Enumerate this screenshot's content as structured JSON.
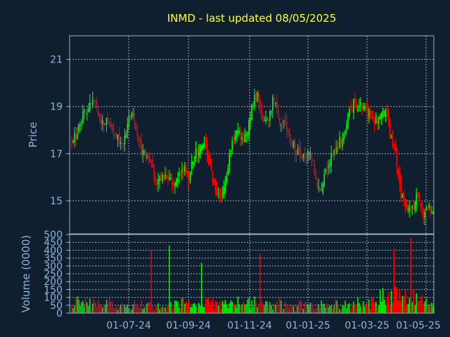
{
  "chart_data": {
    "type": "candlestick",
    "title": "INMD - last updated 08/05/2025",
    "price_panel": {
      "ylabel": "Price",
      "ylim": [
        13.6,
        22.0
      ],
      "yticks": [
        15,
        17,
        19,
        21
      ],
      "ytick_labels": [
        "15",
        "17",
        "19",
        "21"
      ]
    },
    "volume_panel": {
      "ylabel": "Volume (0000)",
      "ylim": [
        0,
        500
      ],
      "yticks": [
        0,
        50,
        100,
        150,
        200,
        250,
        300,
        350,
        400,
        450,
        500
      ],
      "ytick_labels": [
        "0",
        "50",
        "100",
        "150",
        "200",
        "250",
        "300",
        "350",
        "400",
        "450",
        "500"
      ]
    },
    "x_labels": [
      "01-07-24",
      "01-09-24",
      "01-11-24",
      "01-01-25",
      "01-03-25",
      "01-05-25"
    ],
    "grid": true,
    "up_color": "#00ff00",
    "down_color": "#ff0000",
    "background": "#0f1f30",
    "title_color": "#ffff33",
    "text_color": "#8fb5d8",
    "price_path": [
      17.4,
      17.9,
      18.6,
      18.8,
      19.3,
      18.7,
      18.2,
      18.4,
      18.0,
      17.5,
      17.6,
      18.8,
      18.3,
      17.2,
      17.0,
      16.4,
      15.8,
      15.9,
      16.1,
      15.7,
      15.9,
      16.5,
      15.8,
      16.9,
      17.2,
      17.6,
      16.4,
      15.4,
      15.0,
      16.0,
      17.4,
      18.0,
      17.6,
      17.8,
      19.2,
      19.4,
      18.2,
      18.4,
      19.5,
      18.6,
      18.2,
      17.8,
      17.2,
      16.9,
      16.7,
      17.1,
      15.8,
      15.6,
      16.5,
      17.0,
      17.4,
      17.6,
      18.6,
      19.1,
      19.0,
      18.9,
      18.7,
      18.4,
      18.5,
      18.8,
      17.8,
      16.8,
      15.2,
      14.8,
      14.6,
      15.4,
      14.3,
      14.7,
      14.4
    ],
    "volume_path": [
      40,
      90,
      60,
      70,
      80,
      60,
      50,
      70,
      60,
      50,
      40,
      60,
      80,
      70,
      60,
      50,
      40,
      60,
      50,
      60,
      70,
      80,
      60,
      50,
      60,
      70,
      90,
      60,
      50,
      60,
      70,
      80,
      60,
      70,
      80,
      90,
      60,
      50,
      60,
      70,
      60,
      50,
      40,
      60,
      50,
      60,
      70,
      80,
      90,
      70,
      60,
      50,
      60,
      70,
      80,
      60,
      70,
      90,
      110,
      120,
      130,
      150,
      140,
      120,
      110,
      100,
      90,
      80,
      60
    ],
    "volume_spikes": [
      [
        0.22,
        400
      ],
      [
        0.27,
        430
      ],
      [
        0.36,
        320
      ],
      [
        0.52,
        380
      ],
      [
        0.89,
        410
      ],
      [
        0.94,
        480
      ]
    ]
  }
}
